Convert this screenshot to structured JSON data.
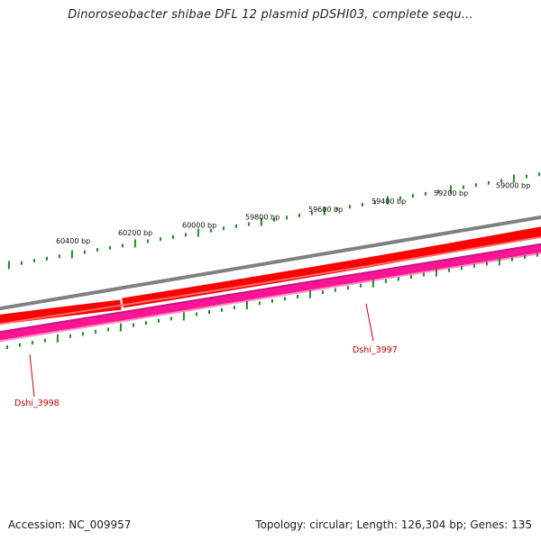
{
  "title": "Dinoroseobacter shibae DFL 12 plasmid pDSHI03, complete sequ...",
  "scale_ticks": [
    {
      "label": "60400 bp"
    },
    {
      "label": "60200 bp"
    },
    {
      "label": "60000 bp"
    },
    {
      "label": "59800 bp"
    },
    {
      "label": "59600 bp"
    },
    {
      "label": "59400 bp"
    },
    {
      "label": "59200 bp"
    },
    {
      "label": "59000 bp"
    }
  ],
  "genes": [
    {
      "name": "Dshi_3998"
    },
    {
      "name": "Dshi_3997"
    }
  ],
  "footer": {
    "accession": "Accession: NC_009957",
    "summary": "Topology: circular; Length: 126,304 bp; Genes: 135"
  },
  "colors": {
    "backbone": "#808080",
    "forward_strand": "#ff0000",
    "reverse_strand": "#ff1493",
    "tick": "#228b22",
    "label": "#cc0000"
  }
}
